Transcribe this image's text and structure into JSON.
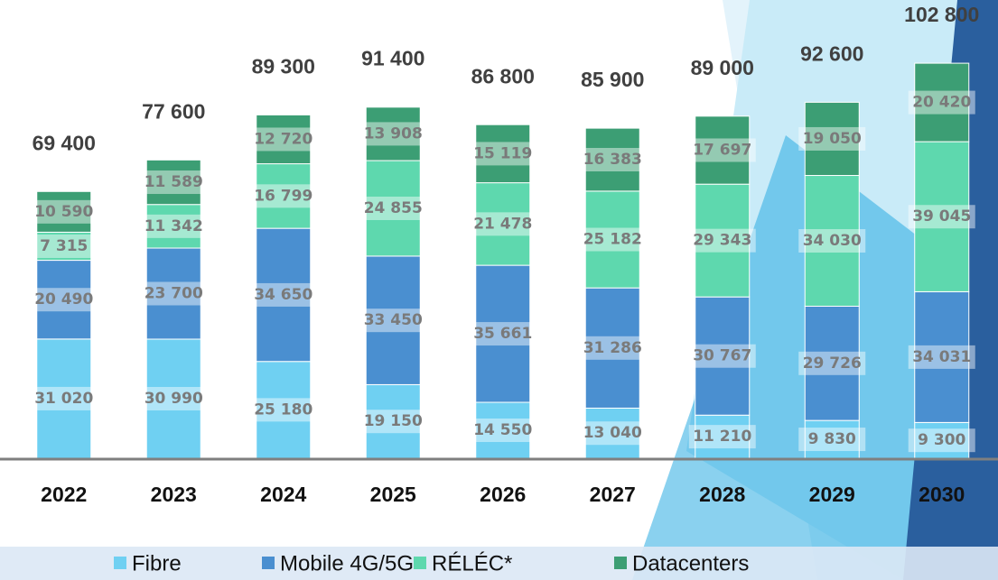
{
  "chart_data": {
    "type": "bar",
    "stacked": true,
    "categories": [
      "2022",
      "2023",
      "2024",
      "2025",
      "2026",
      "2027",
      "2028",
      "2029",
      "2030"
    ],
    "series": [
      {
        "name": "Fibre",
        "color": "#6fd0f2",
        "values": [
          31020,
          30990,
          25180,
          19150,
          14550,
          13040,
          11210,
          9830,
          9300
        ],
        "value_labels": [
          "31 020",
          "30 990",
          "25 180",
          "19 150",
          "14 550",
          "13 040",
          "11 210",
          "9 830",
          "9 300"
        ]
      },
      {
        "name": "Mobile 4G/5G",
        "color": "#4a8fd0",
        "values": [
          20490,
          23700,
          34650,
          33450,
          35661,
          31286,
          30767,
          29726,
          34031
        ],
        "value_labels": [
          "20 490",
          "23 700",
          "34 650",
          "33 450",
          "35 661",
          "31 286",
          "30 767",
          "29 726",
          "34 031"
        ]
      },
      {
        "name": "RÉLÉC*",
        "color": "#5ed8ae",
        "values": [
          7315,
          11342,
          16799,
          24855,
          21478,
          25182,
          29343,
          34030,
          39045
        ],
        "value_labels": [
          "7 315",
          "11 342",
          "16 799",
          "24 855",
          "21 478",
          "25 182",
          "29 343",
          "34 030",
          "39 045"
        ]
      },
      {
        "name": "Datacenters",
        "color": "#3c9e74",
        "values": [
          10590,
          11589,
          12720,
          13908,
          15119,
          16383,
          17697,
          19050,
          20420
        ],
        "value_labels": [
          "10 590",
          "11 589",
          "12 720",
          "13 908",
          "15 119",
          "16 383",
          "17 697",
          "19 050",
          "20 420"
        ]
      }
    ],
    "totals": [
      69400,
      77600,
      89300,
      91400,
      86800,
      85900,
      89000,
      92600,
      102800
    ],
    "total_labels": [
      "69 400",
      "77 600",
      "89 300",
      "91 400",
      "86 800",
      "85 900",
      "89 000",
      "92 600",
      "102 800"
    ],
    "legend": "bottom"
  }
}
